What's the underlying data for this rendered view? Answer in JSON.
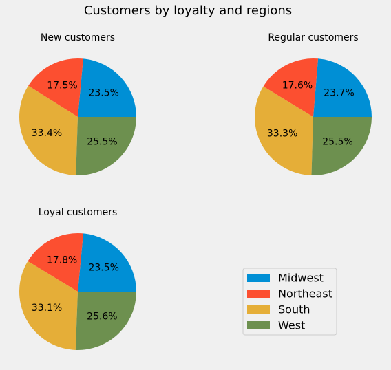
{
  "chart_data": {
    "title": "Customers by loyalty and regions",
    "colors": {
      "Midwest": "#008fd5",
      "Northeast": "#fc4f30",
      "South": "#e5ae38",
      "West": "#6d904f"
    },
    "legend": {
      "placement": "lower-right",
      "entries": [
        "Midwest",
        "Northeast",
        "South",
        "West"
      ]
    },
    "charts": [
      {
        "type": "pie",
        "title": "New customers",
        "labels": [
          "Midwest",
          "Northeast",
          "South",
          "West"
        ],
        "values": [
          23.5,
          17.5,
          33.4,
          25.5
        ],
        "value_labels": [
          "23.5%",
          "17.5%",
          "33.4%",
          "25.5%"
        ]
      },
      {
        "type": "pie",
        "title": "Regular customers",
        "labels": [
          "Midwest",
          "Northeast",
          "South",
          "West"
        ],
        "values": [
          23.7,
          17.6,
          33.3,
          25.5
        ],
        "value_labels": [
          "23.7%",
          "17.6%",
          "33.3%",
          "25.5%"
        ]
      },
      {
        "type": "pie",
        "title": "Loyal customers",
        "labels": [
          "Midwest",
          "Northeast",
          "South",
          "West"
        ],
        "values": [
          23.5,
          17.8,
          33.1,
          25.6
        ],
        "value_labels": [
          "23.5%",
          "17.8%",
          "33.1%",
          "25.6%"
        ]
      }
    ]
  }
}
